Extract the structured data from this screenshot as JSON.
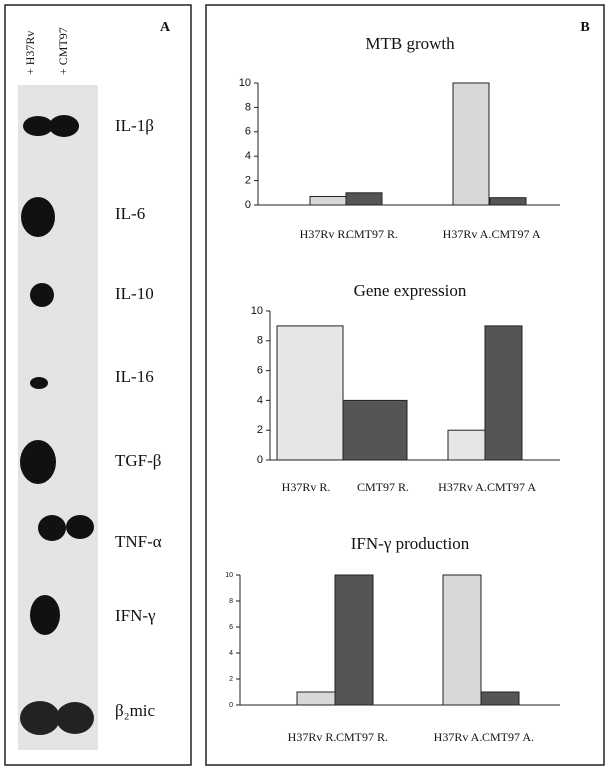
{
  "panel_labels": {
    "a": "A",
    "b": "B"
  },
  "blot": {
    "lanes": [
      "+ H37Rv",
      "+ CMT97"
    ],
    "rows": [
      "IL-1β",
      "IL-6",
      "IL-10",
      "IL-16",
      "TGF-β",
      "TNF-α",
      "IFN-γ",
      "β₂mic"
    ]
  },
  "chart_data": [
    {
      "type": "bar",
      "title": "MTB growth",
      "categories": [
        "H37Rv R.",
        "CMT97 R.",
        "H37Rv A.",
        "CMT97 A"
      ],
      "values": [
        0.7,
        1,
        10,
        0.6
      ],
      "colors": [
        "#d8d8d8",
        "#555555",
        "#d8d8d8",
        "#555555"
      ],
      "ylim": [
        0,
        10
      ],
      "yticks": [
        0,
        2,
        4,
        6,
        8,
        10
      ]
    },
    {
      "type": "bar",
      "title": "Gene expression",
      "categories": [
        "H37Rv R.",
        "CMT97 R.",
        "H37Rv A.",
        "CMT97 A"
      ],
      "values": [
        9,
        4,
        2,
        9
      ],
      "colors": [
        "#e6e6e6",
        "#555555",
        "#e6e6e6",
        "#555555"
      ],
      "ylim": [
        0,
        10
      ],
      "yticks": [
        0,
        2,
        4,
        6,
        8,
        10
      ]
    },
    {
      "type": "bar",
      "title": "IFN-γ production",
      "categories": [
        "H37Rv R.",
        "CMT97 R.",
        "H37Rv A.",
        "CMT97 A."
      ],
      "values": [
        1,
        10,
        10,
        1
      ],
      "colors": [
        "#d8d8d8",
        "#555555",
        "#d8d8d8",
        "#555555"
      ],
      "ylim": [
        0,
        10
      ],
      "yticks": [
        0,
        2,
        4,
        6,
        8,
        10
      ]
    }
  ]
}
